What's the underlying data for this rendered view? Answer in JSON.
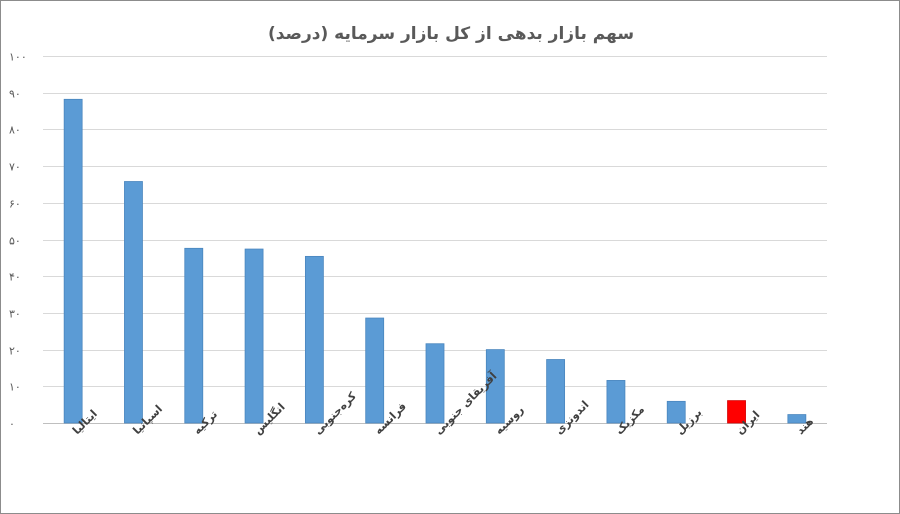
{
  "chart_data": {
    "type": "bar",
    "title": "سهم بازار بدهی از کل بازار سرمایه (درصد)",
    "xlabel": "",
    "ylabel": "",
    "ylim": [
      0,
      100
    ],
    "yticks": [
      "۰",
      "۱۰",
      "۲۰",
      "۳۰",
      "۴۰",
      "۵۰",
      "۶۰",
      "۷۰",
      "۸۰",
      "۹۰",
      "۱۰۰"
    ],
    "categories": [
      "ایتالیا",
      "اسپانیا",
      "ترکیه",
      "انگلیس",
      "کره‌جنوبی",
      "فرانسه",
      "آفریقای جنوبی",
      "روسیه",
      "اندونزی",
      "مکزیک",
      "برزیل",
      "ایران",
      "هند"
    ],
    "values": [
      88.2,
      65.8,
      47.6,
      47.4,
      45.4,
      28.6,
      21.6,
      20.0,
      17.3,
      11.6,
      5.9,
      6.1,
      2.3
    ],
    "grid": true,
    "legend": "none",
    "bar_color": "#5b9bd5",
    "bar_border": "#4a86be",
    "highlight": {
      "category": "ایران",
      "color": "#ff0000"
    }
  }
}
